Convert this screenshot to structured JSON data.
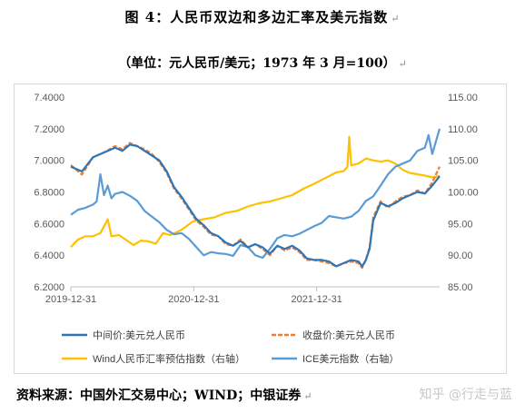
{
  "title": "图 4：人民币双边和多边汇率及美元指数",
  "subtitle": "（单位：元人民币/美元；1973 年 3 月=100）",
  "source": "资料来源：中国外汇交易中心；WIND；中银证券",
  "watermark": "知乎 @行走与蓝",
  "paragraph_mark": "↵",
  "chart_data": {
    "type": "line",
    "x_ticks": [
      "2019-12-31",
      "2020-12-31",
      "2021-12-31"
    ],
    "x_range": [
      "2019-12-31",
      "2022-09-30"
    ],
    "y_left": {
      "ticks": [
        "6.2000",
        "6.4000",
        "6.6000",
        "6.8000",
        "7.0000",
        "7.2000",
        "7.4000"
      ],
      "range": [
        6.2,
        7.4
      ]
    },
    "y_right": {
      "ticks": [
        "85.00",
        "90.00",
        "95.00",
        "100.00",
        "105.00",
        "110.00",
        "115.00"
      ],
      "range": [
        85,
        115
      ]
    },
    "grid": false,
    "legend_position": "bottom",
    "series": [
      {
        "name": "中间价:美元兑人民币",
        "axis": "left",
        "color": "#2e75b6",
        "dash": "solid",
        "points": [
          [
            0.0,
            6.96
          ],
          [
            0.03,
            6.93
          ],
          [
            0.06,
            7.02
          ],
          [
            0.09,
            7.05
          ],
          [
            0.12,
            7.08
          ],
          [
            0.14,
            7.06
          ],
          [
            0.16,
            7.1
          ],
          [
            0.18,
            7.09
          ],
          [
            0.2,
            7.06
          ],
          [
            0.22,
            7.03
          ],
          [
            0.24,
            7.0
          ],
          [
            0.26,
            6.93
          ],
          [
            0.28,
            6.83
          ],
          [
            0.3,
            6.77
          ],
          [
            0.32,
            6.7
          ],
          [
            0.34,
            6.63
          ],
          [
            0.36,
            6.59
          ],
          [
            0.38,
            6.54
          ],
          [
            0.4,
            6.52
          ],
          [
            0.42,
            6.48
          ],
          [
            0.44,
            6.46
          ],
          [
            0.46,
            6.49
          ],
          [
            0.48,
            6.45
          ],
          [
            0.5,
            6.47
          ],
          [
            0.52,
            6.45
          ],
          [
            0.54,
            6.41
          ],
          [
            0.56,
            6.46
          ],
          [
            0.58,
            6.44
          ],
          [
            0.6,
            6.46
          ],
          [
            0.62,
            6.43
          ],
          [
            0.64,
            6.38
          ],
          [
            0.66,
            6.37
          ],
          [
            0.68,
            6.37
          ],
          [
            0.7,
            6.36
          ],
          [
            0.72,
            6.33
          ],
          [
            0.74,
            6.35
          ],
          [
            0.76,
            6.37
          ],
          [
            0.78,
            6.36
          ],
          [
            0.79,
            6.33
          ],
          [
            0.8,
            6.37
          ],
          [
            0.81,
            6.44
          ],
          [
            0.82,
            6.62
          ],
          [
            0.84,
            6.73
          ],
          [
            0.86,
            6.71
          ],
          [
            0.88,
            6.73
          ],
          [
            0.9,
            6.76
          ],
          [
            0.92,
            6.78
          ],
          [
            0.94,
            6.8
          ],
          [
            0.96,
            6.79
          ],
          [
            0.98,
            6.84
          ],
          [
            1.0,
            6.9
          ]
        ]
      },
      {
        "name": "收盘价:美元兑人民币",
        "axis": "left",
        "color": "#ed7d31",
        "dash": "dashed",
        "points": [
          [
            0.0,
            6.97
          ],
          [
            0.03,
            6.91
          ],
          [
            0.06,
            7.02
          ],
          [
            0.09,
            7.05
          ],
          [
            0.12,
            7.09
          ],
          [
            0.14,
            7.07
          ],
          [
            0.16,
            7.11
          ],
          [
            0.18,
            7.09
          ],
          [
            0.2,
            7.07
          ],
          [
            0.22,
            7.04
          ],
          [
            0.24,
            6.99
          ],
          [
            0.26,
            6.92
          ],
          [
            0.28,
            6.82
          ],
          [
            0.3,
            6.76
          ],
          [
            0.32,
            6.69
          ],
          [
            0.34,
            6.62
          ],
          [
            0.36,
            6.58
          ],
          [
            0.38,
            6.53
          ],
          [
            0.4,
            6.52
          ],
          [
            0.42,
            6.47
          ],
          [
            0.44,
            6.46
          ],
          [
            0.46,
            6.5
          ],
          [
            0.48,
            6.45
          ],
          [
            0.5,
            6.47
          ],
          [
            0.52,
            6.44
          ],
          [
            0.54,
            6.4
          ],
          [
            0.56,
            6.46
          ],
          [
            0.58,
            6.43
          ],
          [
            0.6,
            6.45
          ],
          [
            0.62,
            6.42
          ],
          [
            0.64,
            6.37
          ],
          [
            0.66,
            6.37
          ],
          [
            0.68,
            6.36
          ],
          [
            0.7,
            6.35
          ],
          [
            0.72,
            6.33
          ],
          [
            0.74,
            6.35
          ],
          [
            0.76,
            6.36
          ],
          [
            0.78,
            6.35
          ],
          [
            0.79,
            6.32
          ],
          [
            0.8,
            6.37
          ],
          [
            0.81,
            6.45
          ],
          [
            0.82,
            6.64
          ],
          [
            0.84,
            6.74
          ],
          [
            0.86,
            6.7
          ],
          [
            0.88,
            6.74
          ],
          [
            0.9,
            6.77
          ],
          [
            0.92,
            6.78
          ],
          [
            0.94,
            6.81
          ],
          [
            0.96,
            6.79
          ],
          [
            0.98,
            6.86
          ],
          [
            1.0,
            6.96
          ]
        ]
      },
      {
        "name": "Wind人民币汇率预估指数（右轴）",
        "axis": "right",
        "color": "#ffc000",
        "dash": "solid",
        "points": [
          [
            0.0,
            91.3
          ],
          [
            0.02,
            92.5
          ],
          [
            0.04,
            93.0
          ],
          [
            0.06,
            93.0
          ],
          [
            0.08,
            93.5
          ],
          [
            0.1,
            95.7
          ],
          [
            0.11,
            93.0
          ],
          [
            0.13,
            93.2
          ],
          [
            0.15,
            92.4
          ],
          [
            0.17,
            91.6
          ],
          [
            0.19,
            92.3
          ],
          [
            0.21,
            92.2
          ],
          [
            0.23,
            91.8
          ],
          [
            0.25,
            93.5
          ],
          [
            0.27,
            93.2
          ],
          [
            0.3,
            94.0
          ],
          [
            0.33,
            95.3
          ],
          [
            0.36,
            95.7
          ],
          [
            0.39,
            96.0
          ],
          [
            0.42,
            96.7
          ],
          [
            0.45,
            97.0
          ],
          [
            0.48,
            97.7
          ],
          [
            0.51,
            98.2
          ],
          [
            0.54,
            98.5
          ],
          [
            0.57,
            99.0
          ],
          [
            0.6,
            99.5
          ],
          [
            0.63,
            100.5
          ],
          [
            0.66,
            101.3
          ],
          [
            0.69,
            102.2
          ],
          [
            0.72,
            103.1
          ],
          [
            0.74,
            103.3
          ],
          [
            0.75,
            104.0
          ],
          [
            0.755,
            108.7
          ],
          [
            0.76,
            104.2
          ],
          [
            0.78,
            104.5
          ],
          [
            0.8,
            105.3
          ],
          [
            0.82,
            105.0
          ],
          [
            0.84,
            104.8
          ],
          [
            0.86,
            105.0
          ],
          [
            0.88,
            104.5
          ],
          [
            0.9,
            103.5
          ],
          [
            0.92,
            103.0
          ],
          [
            0.94,
            102.8
          ],
          [
            0.96,
            102.6
          ],
          [
            0.98,
            102.3
          ],
          [
            1.0,
            102.5
          ]
        ]
      },
      {
        "name": "ICE美元指数（右轴）",
        "axis": "right",
        "color": "#5b9bd5",
        "dash": "solid",
        "points": [
          [
            0.0,
            96.4
          ],
          [
            0.02,
            97.2
          ],
          [
            0.04,
            97.5
          ],
          [
            0.06,
            98.0
          ],
          [
            0.07,
            98.5
          ],
          [
            0.08,
            102.8
          ],
          [
            0.09,
            99.5
          ],
          [
            0.1,
            101.0
          ],
          [
            0.11,
            99.0
          ],
          [
            0.12,
            99.7
          ],
          [
            0.14,
            100.0
          ],
          [
            0.16,
            99.4
          ],
          [
            0.18,
            98.6
          ],
          [
            0.2,
            97.0
          ],
          [
            0.22,
            96.1
          ],
          [
            0.24,
            95.2
          ],
          [
            0.26,
            94.0
          ],
          [
            0.28,
            93.3
          ],
          [
            0.3,
            93.5
          ],
          [
            0.32,
            92.6
          ],
          [
            0.34,
            91.3
          ],
          [
            0.36,
            90.0
          ],
          [
            0.38,
            90.5
          ],
          [
            0.4,
            90.3
          ],
          [
            0.42,
            90.2
          ],
          [
            0.44,
            89.9
          ],
          [
            0.46,
            91.6
          ],
          [
            0.48,
            91.3
          ],
          [
            0.5,
            90.0
          ],
          [
            0.52,
            89.6
          ],
          [
            0.54,
            91.0
          ],
          [
            0.56,
            92.7
          ],
          [
            0.58,
            93.2
          ],
          [
            0.6,
            93.0
          ],
          [
            0.62,
            93.4
          ],
          [
            0.64,
            94.0
          ],
          [
            0.66,
            94.6
          ],
          [
            0.68,
            95.1
          ],
          [
            0.7,
            96.2
          ],
          [
            0.72,
            96.0
          ],
          [
            0.74,
            95.8
          ],
          [
            0.76,
            96.1
          ],
          [
            0.78,
            97.0
          ],
          [
            0.8,
            98.6
          ],
          [
            0.82,
            99.3
          ],
          [
            0.84,
            101.0
          ],
          [
            0.86,
            102.8
          ],
          [
            0.88,
            104.0
          ],
          [
            0.9,
            104.5
          ],
          [
            0.92,
            105.0
          ],
          [
            0.94,
            106.5
          ],
          [
            0.96,
            107.0
          ],
          [
            0.97,
            109.0
          ],
          [
            0.98,
            106.0
          ],
          [
            1.0,
            110.0
          ]
        ]
      }
    ]
  }
}
